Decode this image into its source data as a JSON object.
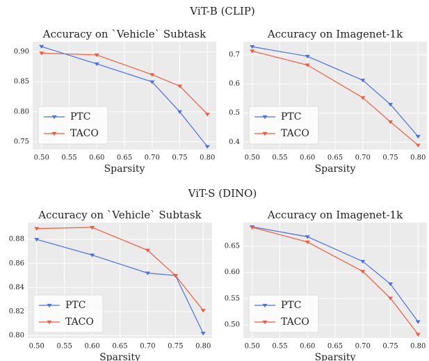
{
  "suptitles": [
    "ViT-B (CLIP)",
    "ViT-S (DINO)"
  ],
  "chart_data": [
    {
      "type": "line",
      "title": "Accuracy on `Vehicle` Subtask",
      "xlabel": "Sparsity",
      "x": [
        0.5,
        0.6,
        0.7,
        0.75,
        0.8
      ],
      "xlim": [
        0.484,
        0.816
      ],
      "xticks": [
        {
          "value": 0.5,
          "label": "0.50"
        },
        0.55,
        {
          "value": 0.6,
          "label": "0.60"
        },
        0.65,
        {
          "value": 0.7,
          "label": "0.70"
        },
        0.75,
        {
          "value": 0.8,
          "label": "0.80"
        }
      ],
      "ylim": [
        0.737,
        0.917
      ],
      "yticks": [
        0.75,
        {
          "value": 0.8,
          "label": "0.80"
        },
        0.85,
        {
          "value": 0.9,
          "label": "0.90"
        }
      ],
      "grid": true,
      "legend": "lower left",
      "series": [
        {
          "name": "PTC",
          "color": "#4a6fe3",
          "values": [
            0.909,
            0.88,
            0.85,
            0.8,
            0.742
          ]
        },
        {
          "name": "TACO",
          "color": "#f15a3c",
          "values": [
            0.898,
            0.895,
            0.862,
            0.843,
            0.796
          ]
        }
      ]
    },
    {
      "type": "line",
      "title": "Accuracy on Imagenet-1k",
      "xlabel": "Sparsity",
      "x": [
        0.5,
        0.6,
        0.7,
        0.75,
        0.8
      ],
      "xlim": [
        0.484,
        0.816
      ],
      "xticks": [
        {
          "value": 0.5,
          "label": "0.50"
        },
        0.55,
        {
          "value": 0.6,
          "label": "0.60"
        },
        0.65,
        {
          "value": 0.7,
          "label": "0.70"
        },
        0.75,
        {
          "value": 0.8,
          "label": "0.80"
        }
      ],
      "ylim": [
        0.375,
        0.745
      ],
      "yticks": [
        0.4,
        0.5,
        0.6,
        0.7
      ],
      "grid": true,
      "legend": "lower left",
      "series": [
        {
          "name": "PTC",
          "color": "#4a6fe3",
          "values": [
            0.728,
            0.695,
            0.613,
            0.53,
            0.42
          ]
        },
        {
          "name": "TACO",
          "color": "#f15a3c",
          "values": [
            0.713,
            0.665,
            0.553,
            0.47,
            0.39
          ]
        }
      ]
    },
    {
      "type": "line",
      "title": "Accuracy on `Vehicle` Subtask",
      "xlabel": "Sparsity",
      "x": [
        0.5,
        0.6,
        0.7,
        0.75,
        0.8
      ],
      "xlim": [
        0.484,
        0.816
      ],
      "xticks": [
        {
          "value": 0.5,
          "label": "0.50"
        },
        0.55,
        {
          "value": 0.6,
          "label": "0.60"
        },
        0.65,
        {
          "value": 0.7,
          "label": "0.70"
        },
        0.75,
        {
          "value": 0.8,
          "label": "0.80"
        }
      ],
      "ylim": [
        0.798,
        0.894
      ],
      "yticks": [
        {
          "value": 0.8,
          "label": "0.80"
        },
        0.82,
        0.84,
        0.86,
        0.88
      ],
      "grid": true,
      "legend": "lower left",
      "series": [
        {
          "name": "PTC",
          "color": "#4a6fe3",
          "values": [
            0.88,
            0.867,
            0.852,
            0.85,
            0.802
          ]
        },
        {
          "name": "TACO",
          "color": "#f15a3c",
          "values": [
            0.889,
            0.89,
            0.871,
            0.85,
            0.821
          ]
        }
      ]
    },
    {
      "type": "line",
      "title": "Accuracy on Imagenet-1k",
      "xlabel": "Sparsity",
      "x": [
        0.5,
        0.6,
        0.7,
        0.75,
        0.8
      ],
      "xlim": [
        0.484,
        0.816
      ],
      "xticks": [
        {
          "value": 0.5,
          "label": "0.50"
        },
        0.55,
        {
          "value": 0.6,
          "label": "0.60"
        },
        0.65,
        {
          "value": 0.7,
          "label": "0.70"
        },
        0.75,
        {
          "value": 0.8,
          "label": "0.80"
        }
      ],
      "ylim": [
        0.475,
        0.695
      ],
      "yticks": [
        {
          "value": 0.5,
          "label": "0.50"
        },
        0.55,
        {
          "value": 0.6,
          "label": "0.60"
        },
        0.65
      ],
      "grid": true,
      "legend": "lower left",
      "series": [
        {
          "name": "PTC",
          "color": "#4a6fe3",
          "values": [
            0.687,
            0.668,
            0.621,
            0.578,
            0.506
          ]
        },
        {
          "name": "TACO",
          "color": "#f15a3c",
          "values": [
            0.686,
            0.658,
            0.602,
            0.551,
            0.482
          ]
        }
      ]
    }
  ]
}
